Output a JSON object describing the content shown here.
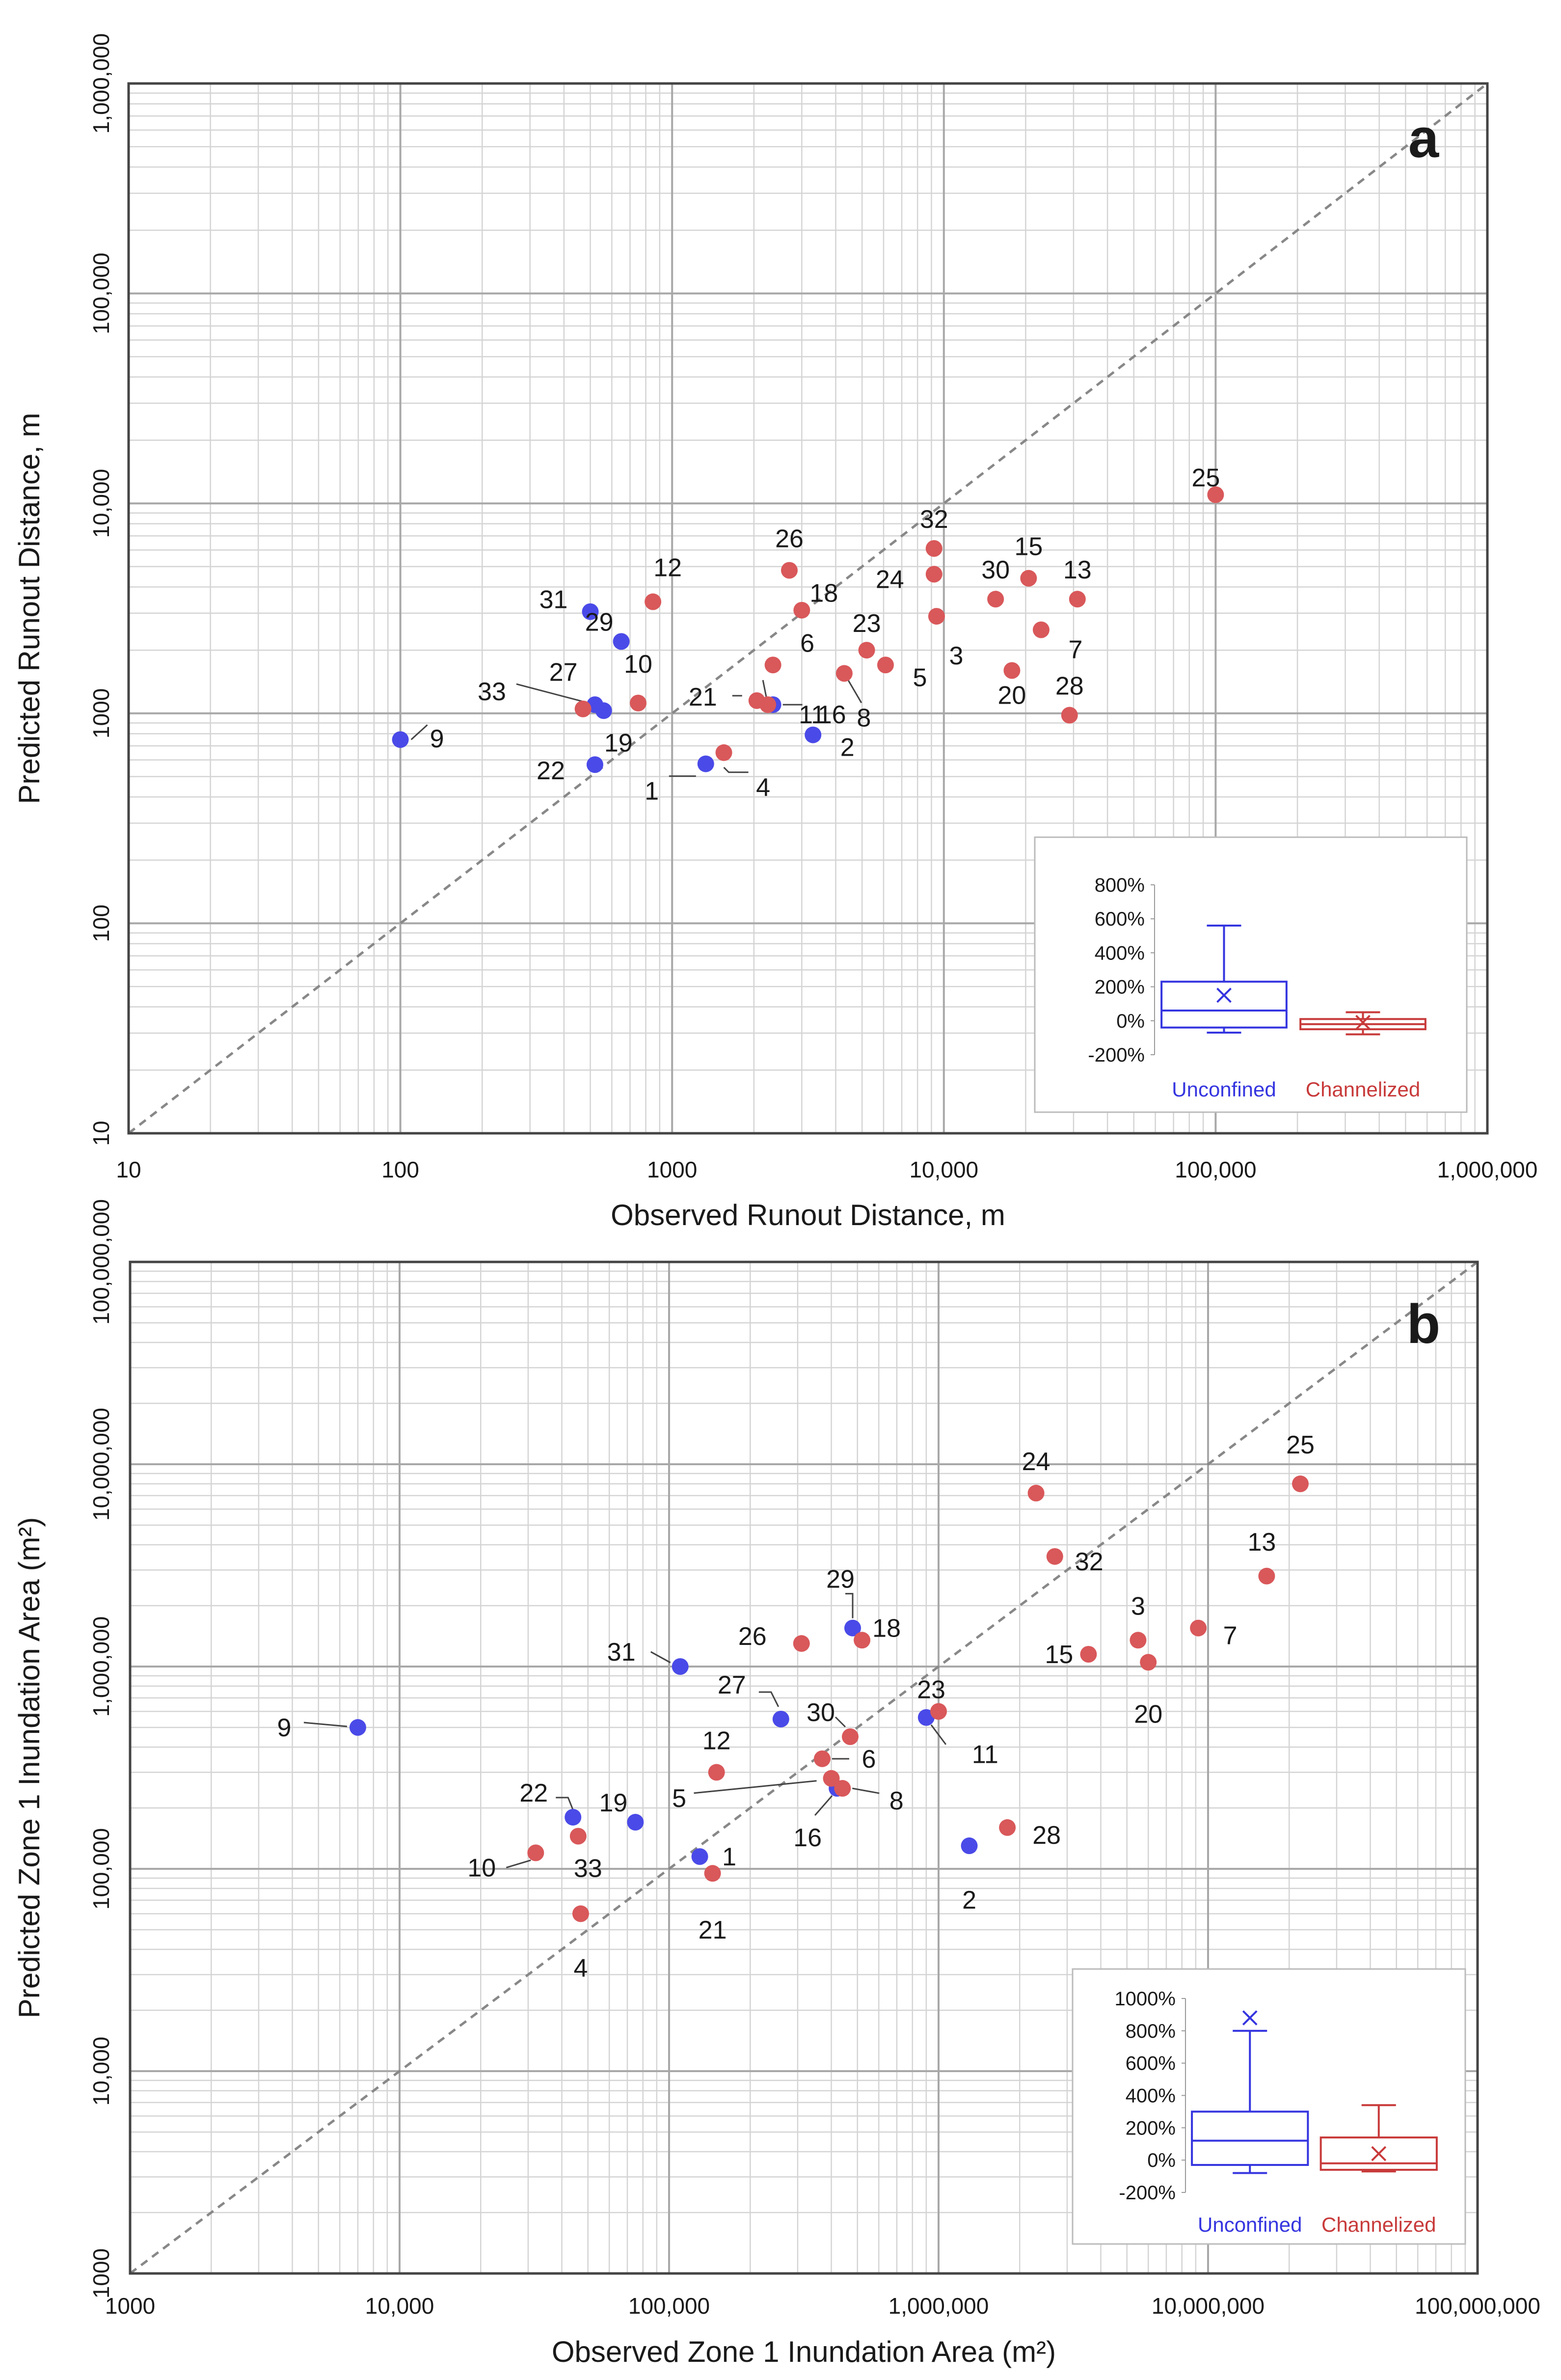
{
  "colors": {
    "unconfined": "#4a4ae8",
    "channelized": "#d9585a",
    "box_unconfined": "#3535e0",
    "box_channelized": "#c83a3a",
    "grid": "#d4d4d4",
    "diagonal": "#888888"
  },
  "chart_data": [
    {
      "panel": "a",
      "type": "scatter",
      "scale": "log-log",
      "xlabel": "Observed Runout Distance, m",
      "ylabel": "Predicted Runout Distance, m",
      "xlim": [
        10,
        1000000
      ],
      "ylim": [
        10,
        1000000
      ],
      "x_tick_labels": [
        "10",
        "100",
        "1000",
        "10,000",
        "100,000",
        "1,000,000"
      ],
      "y_tick_labels": [
        "10",
        "100",
        "1000",
        "10,000",
        "100,000",
        "1,000,000"
      ],
      "reference_line": "1:1",
      "series": [
        {
          "name": "Unconfined",
          "points": [
            {
              "id": "9",
              "x": 100,
              "y": 750
            },
            {
              "id": "31",
              "x": 500,
              "y": 3050
            },
            {
              "id": "29",
              "x": 650,
              "y": 2200
            },
            {
              "id": "33",
              "x": 520,
              "y": 1100
            },
            {
              "id": "19",
              "x": 560,
              "y": 1030
            },
            {
              "id": "22",
              "x": 520,
              "y": 570
            },
            {
              "id": "1",
              "x": 1330,
              "y": 575
            },
            {
              "id": "16",
              "x": 2350,
              "y": 1100
            },
            {
              "id": "2",
              "x": 3300,
              "y": 790
            }
          ]
        },
        {
          "name": "Channelized",
          "points": [
            {
              "id": "12",
              "x": 850,
              "y": 3400
            },
            {
              "id": "27",
              "x": 470,
              "y": 1050
            },
            {
              "id": "10",
              "x": 750,
              "y": 1120
            },
            {
              "id": "4",
              "x": 1550,
              "y": 650
            },
            {
              "id": "11",
              "x": 2250,
              "y": 1100
            },
            {
              "id": "21",
              "x": 2050,
              "y": 1150
            },
            {
              "id": "26",
              "x": 2700,
              "y": 4800
            },
            {
              "id": "18",
              "x": 3000,
              "y": 3100
            },
            {
              "id": "6",
              "x": 2350,
              "y": 1700
            },
            {
              "id": "8",
              "x": 4300,
              "y": 1550
            },
            {
              "id": "23",
              "x": 5200,
              "y": 2000
            },
            {
              "id": "5",
              "x": 6100,
              "y": 1700
            },
            {
              "id": "32",
              "x": 9200,
              "y": 6100
            },
            {
              "id": "24",
              "x": 9200,
              "y": 4600
            },
            {
              "id": "3",
              "x": 9400,
              "y": 2900
            },
            {
              "id": "30",
              "x": 15500,
              "y": 3500
            },
            {
              "id": "15",
              "x": 20500,
              "y": 4400
            },
            {
              "id": "20",
              "x": 17800,
              "y": 1600
            },
            {
              "id": "7",
              "x": 22800,
              "y": 2500
            },
            {
              "id": "13",
              "x": 31000,
              "y": 3500
            },
            {
              "id": "28",
              "x": 29000,
              "y": 980
            },
            {
              "id": "25",
              "x": 100000,
              "y": 11000
            }
          ]
        }
      ],
      "inset": {
        "type": "box",
        "y_tick_labels": [
          "800%",
          "600%",
          "400%",
          "200%",
          "0%",
          "-200%"
        ],
        "ylim": [
          -200,
          800
        ],
        "groups": [
          {
            "name": "Unconfined",
            "whisker_low": -70,
            "q1": -40,
            "median": 60,
            "q3": 230,
            "whisker_high": 560,
            "mean": 150
          },
          {
            "name": "Channelized",
            "whisker_low": -80,
            "q1": -50,
            "median": -20,
            "q3": 10,
            "whisker_high": 50,
            "mean": -10
          }
        ]
      }
    },
    {
      "panel": "b",
      "type": "scatter",
      "scale": "log-log",
      "xlabel": "Observed Zone 1 Inundation Area (m²)",
      "ylabel": "Predicted Zone 1 Inundation Area (m²)",
      "xlim": [
        1000,
        100000000
      ],
      "ylim": [
        1000,
        100000000
      ],
      "x_tick_labels": [
        "1000",
        "10,000",
        "100,000",
        "1,000,000",
        "10,000,000",
        "100,000,000"
      ],
      "y_tick_labels": [
        "1000",
        "10,000",
        "100,000",
        "1,000,000",
        "10,000,000",
        "100,000,000"
      ],
      "reference_line": "1:1",
      "series": [
        {
          "name": "Unconfined",
          "points": [
            {
              "id": "9",
              "x": 7000,
              "y": 500000
            },
            {
              "id": "31",
              "x": 110000,
              "y": 1000000
            },
            {
              "id": "27",
              "x": 260000,
              "y": 550000
            },
            {
              "id": "22",
              "x": 44000,
              "y": 180000
            },
            {
              "id": "19",
              "x": 75000,
              "y": 170000
            },
            {
              "id": "1",
              "x": 130000,
              "y": 115000
            },
            {
              "id": "29",
              "x": 480000,
              "y": 1550000
            },
            {
              "id": "16",
              "x": 420000,
              "y": 250000
            },
            {
              "id": "11",
              "x": 900000,
              "y": 560000
            },
            {
              "id": "2",
              "x": 1300000,
              "y": 130000
            }
          ]
        },
        {
          "name": "Channelized",
          "points": [
            {
              "id": "24",
              "x": 2300000,
              "y": 7200000
            },
            {
              "id": "32",
              "x": 2700000,
              "y": 3500000
            },
            {
              "id": "25",
              "x": 22000000,
              "y": 8000000
            },
            {
              "id": "13",
              "x": 16500000,
              "y": 2800000
            },
            {
              "id": "3",
              "x": 5500000,
              "y": 1350000
            },
            {
              "id": "7",
              "x": 9200000,
              "y": 1550000
            },
            {
              "id": "15",
              "x": 3600000,
              "y": 1150000
            },
            {
              "id": "20",
              "x": 6000000,
              "y": 1050000
            },
            {
              "id": "18",
              "x": 520000,
              "y": 1350000
            },
            {
              "id": "26",
              "x": 310000,
              "y": 1300000
            },
            {
              "id": "23",
              "x": 1000000,
              "y": 600000
            },
            {
              "id": "30",
              "x": 470000,
              "y": 450000
            },
            {
              "id": "12",
              "x": 150000,
              "y": 300000
            },
            {
              "id": "6",
              "x": 370000,
              "y": 350000
            },
            {
              "id": "5",
              "x": 400000,
              "y": 280000
            },
            {
              "id": "8",
              "x": 440000,
              "y": 250000
            },
            {
              "id": "28",
              "x": 1800000,
              "y": 160000
            },
            {
              "id": "10",
              "x": 32000,
              "y": 120000
            },
            {
              "id": "33",
              "x": 46000,
              "y": 145000
            },
            {
              "id": "21",
              "x": 145000,
              "y": 95000
            },
            {
              "id": "4",
              "x": 47000,
              "y": 60000
            }
          ]
        }
      ],
      "inset": {
        "type": "box",
        "y_tick_labels": [
          "1000%",
          "800%",
          "600%",
          "400%",
          "200%",
          "0%",
          "-200%"
        ],
        "ylim": [
          -200,
          1000
        ],
        "groups": [
          {
            "name": "Unconfined",
            "whisker_low": -80,
            "q1": -30,
            "median": 120,
            "q3": 300,
            "whisker_high": 800,
            "mean": 880
          },
          {
            "name": "Channelized",
            "whisker_low": -70,
            "q1": -60,
            "median": -20,
            "q3": 140,
            "whisker_high": 340,
            "mean": 40
          }
        ]
      }
    }
  ]
}
